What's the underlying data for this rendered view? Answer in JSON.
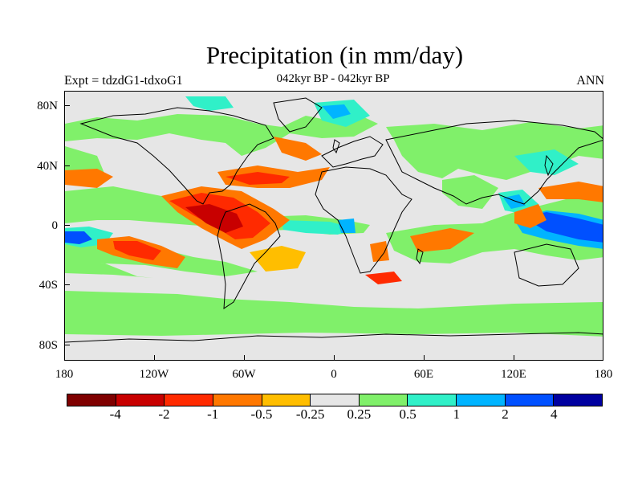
{
  "title": "Precipitation (in mm/day)",
  "experiment": "Expt = tdzdG1-tdxoG1",
  "period": "042kyr BP - 042kyr BP",
  "season": "ANN",
  "lat_labels": [
    "80N",
    "40N",
    "0",
    "40S",
    "80S"
  ],
  "lon_labels": [
    "180",
    "120W",
    "60W",
    "0",
    "60E",
    "120E",
    "180"
  ],
  "colorbar": {
    "colors": [
      "#7f0000",
      "#c80000",
      "#ff2a00",
      "#ff7800",
      "#ffbe00",
      "#e6e6e6",
      "#80f06a",
      "#30f0c8",
      "#00b4ff",
      "#0050ff",
      "#0000a0"
    ],
    "labels": [
      "-4",
      "-2",
      "-1",
      "-0.5",
      "-0.25",
      "0.25",
      "0.5",
      "1",
      "2",
      "4"
    ]
  },
  "colors": {
    "background": "#e6e6e6",
    "dark_red": "#c80000",
    "red": "#ff2a00",
    "orange": "#ff7800",
    "amber": "#ffbe00",
    "green": "#80f06a",
    "cyan": "#30f0c8",
    "sky": "#00b4ff",
    "blue": "#0050ff",
    "coast": "#000000"
  }
}
